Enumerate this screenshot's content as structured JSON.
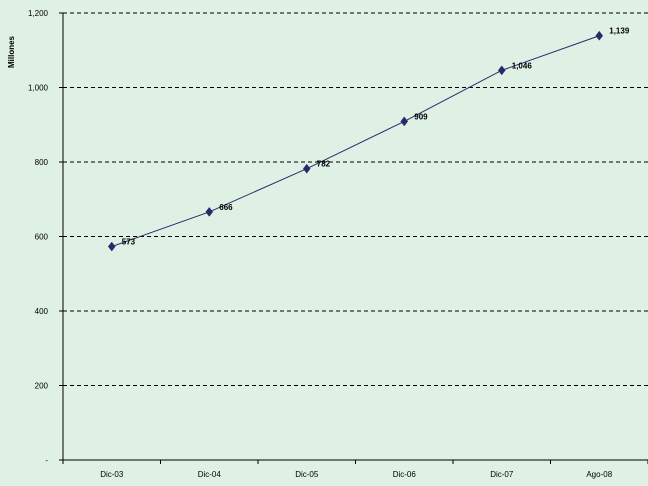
{
  "chart_data": {
    "type": "line",
    "title": "",
    "xlabel": "",
    "ylabel": "Millones",
    "categories": [
      "Dic-03",
      "Dic-04",
      "Dic-05",
      "Dic-06",
      "Dic-07",
      "Ago-08"
    ],
    "series": [
      {
        "values": [
          573,
          666,
          782,
          909,
          1046,
          1139
        ],
        "labels": [
          "573",
          "666",
          "782",
          "909",
          "1,046",
          "1,139"
        ],
        "color": "#2a2a6a",
        "marker": "diamond"
      }
    ],
    "ylim": [
      0,
      1200
    ],
    "yticks": [
      0,
      200,
      400,
      600,
      800,
      1000,
      1200
    ],
    "ytick_labels": [
      "-",
      "200",
      "400",
      "600",
      "800",
      "1,000",
      "1,200"
    ],
    "grid": true,
    "grid_style": "dashed",
    "legend": "none"
  },
  "colors": {
    "background": "#dff0e5",
    "line": "#2a2a6a"
  }
}
